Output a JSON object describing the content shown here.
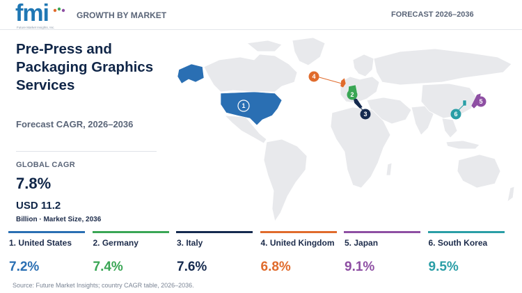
{
  "header": {
    "logo_text": "fmi",
    "logo_tagline": "Future Market Insights, Inc.",
    "left_label": "GROWTH BY MARKET",
    "right_label": "FORECAST 2026–2036"
  },
  "title": "Pre-Press and Packaging Graphics Services",
  "subtitle": "Forecast CAGR, 2026–2036",
  "global": {
    "label": "GLOBAL CAGR",
    "value": "7.8%",
    "market_size": "USD 11.2",
    "market_size_note": "Billion · Market Size, 2036"
  },
  "countries": [
    {
      "rank": "1",
      "name": "1. United States",
      "cagr": "7.2%",
      "color": "#2a6fb3"
    },
    {
      "rank": "2",
      "name": "2. Germany",
      "cagr": "7.4%",
      "color": "#3aa655"
    },
    {
      "rank": "3",
      "name": "3. Italy",
      "cagr": "7.6%",
      "color": "#152a4f"
    },
    {
      "rank": "4",
      "name": "4. United Kingdom",
      "cagr": "6.8%",
      "color": "#e06b2c"
    },
    {
      "rank": "5",
      "name": "5. Japan",
      "cagr": "9.1%",
      "color": "#8e4fa3"
    },
    {
      "rank": "6",
      "name": "6. South Korea",
      "cagr": "9.5%",
      "color": "#2a9ea6"
    }
  ],
  "map": {
    "land_color": "#e8e9ec",
    "border_color": "#ffffff"
  },
  "source": "Source: Future Market Insights; country CAGR table, 2026–2036."
}
